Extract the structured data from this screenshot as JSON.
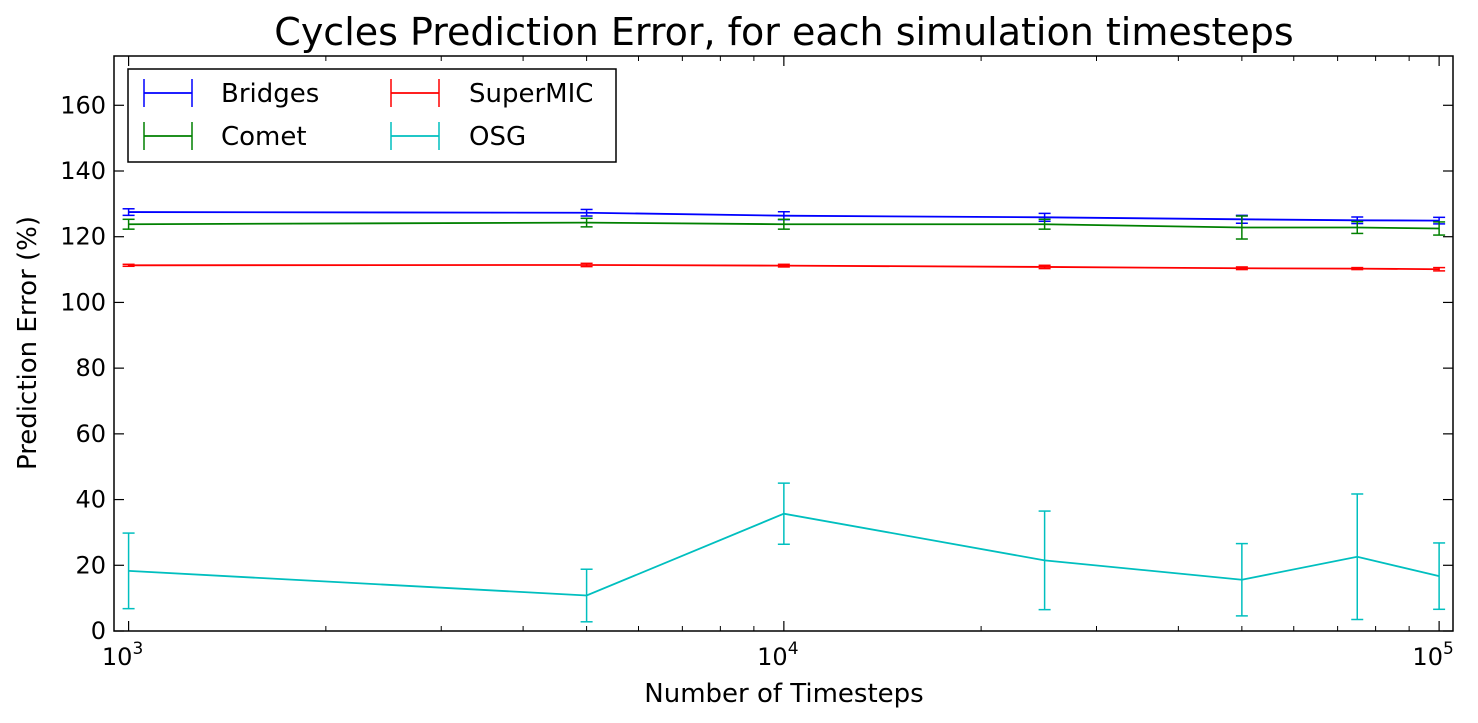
{
  "chart_data": {
    "type": "line",
    "title": "Cycles Prediction Error, for each simulation timesteps",
    "xlabel": "Number of Timesteps",
    "ylabel": "Prediction Error (%)",
    "xscale": "log",
    "xlim": [
      950,
      105000
    ],
    "ylim": [
      0,
      175
    ],
    "xticks": [
      {
        "value": 1000,
        "base": "10",
        "exp": "3"
      },
      {
        "value": 10000,
        "base": "10",
        "exp": "4"
      },
      {
        "value": 100000,
        "base": "10",
        "exp": "5"
      }
    ],
    "yticks": [
      0,
      20,
      40,
      60,
      80,
      100,
      120,
      140,
      160
    ],
    "grid": false,
    "legend_position": "top-left",
    "x": [
      1000,
      5000,
      10000,
      25000,
      50000,
      75000,
      100000
    ],
    "series": [
      {
        "name": "Bridges",
        "color": "#0000ff",
        "values": [
          127.5,
          127.3,
          126.4,
          125.9,
          125.3,
          125.0,
          124.9
        ],
        "err": [
          1.0,
          1.0,
          1.2,
          1.2,
          1.2,
          1.0,
          1.0
        ]
      },
      {
        "name": "Comet",
        "color": "#008000",
        "values": [
          123.8,
          124.3,
          123.8,
          123.8,
          122.8,
          122.8,
          122.5
        ],
        "err": [
          1.5,
          1.3,
          1.5,
          1.5,
          3.5,
          1.8,
          2.0
        ]
      },
      {
        "name": "SuperMIC",
        "color": "#ff0000",
        "values": [
          111.3,
          111.4,
          111.2,
          110.8,
          110.4,
          110.3,
          110.1
        ],
        "err": [
          0.3,
          0.5,
          0.4,
          0.5,
          0.4,
          0.3,
          0.5
        ]
      },
      {
        "name": "OSG",
        "color": "#00bfbf",
        "values": [
          18.3,
          10.8,
          35.7,
          21.5,
          15.6,
          22.6,
          16.7
        ],
        "err": [
          11.5,
          8.0,
          9.3,
          15.0,
          11.0,
          19.1,
          10.1
        ]
      }
    ]
  }
}
